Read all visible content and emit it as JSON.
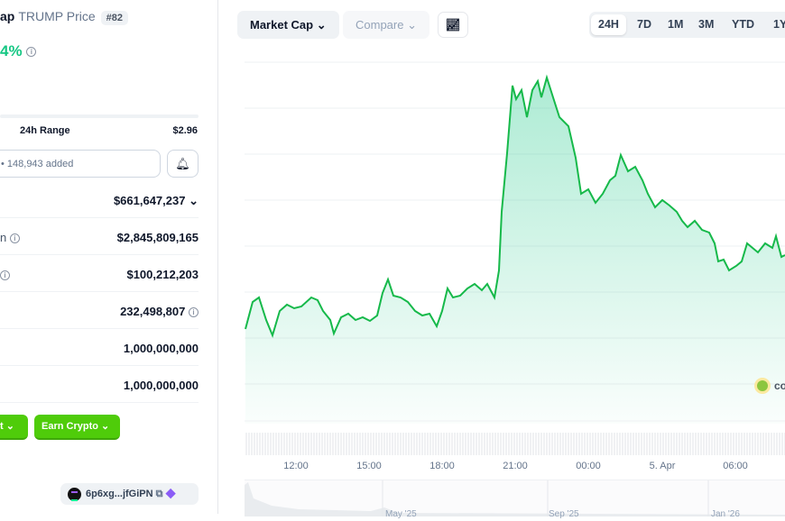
{
  "coin": {
    "name_fragment": "ap",
    "symbol_label": "TRUMP Price",
    "rank": "#82",
    "change_fragment": "4%"
  },
  "range": {
    "label": "24h Range",
    "high": "$2.96"
  },
  "watchlist": {
    "text": "• 148,943 added"
  },
  "stats": [
    {
      "label": "",
      "value": "$661,647,237"
    },
    {
      "label": "n",
      "value": "$2,845,809,165"
    },
    {
      "label": "",
      "value": "$100,212,203"
    },
    {
      "label": "",
      "value": "232,498,807"
    },
    {
      "label": "",
      "value": "1,000,000,000"
    },
    {
      "label": "",
      "value": "1,000,000,000"
    }
  ],
  "buttons": {
    "buy_fragment": "t",
    "earn": "Earn Crypto"
  },
  "contract": {
    "address": "6p6xg...jfGiPN"
  },
  "toolbar": {
    "metric": "Market Cap",
    "compare": "Compare"
  },
  "ranges": [
    "24H",
    "7D",
    "1M",
    "3M",
    "YTD",
    "1Y"
  ],
  "active_range": "24H",
  "colors": {
    "up": "#16c784",
    "line": "#16b94a",
    "button": "#4fcc0a"
  },
  "chart_data": {
    "type": "area",
    "x_ticks": [
      "12:00",
      "15:00",
      "18:00",
      "21:00",
      "00:00",
      "5. Apr",
      "06:00"
    ],
    "navigator_labels": [
      "May '25",
      "Sep '25",
      "Jan '26"
    ],
    "watermark": "co"
  }
}
